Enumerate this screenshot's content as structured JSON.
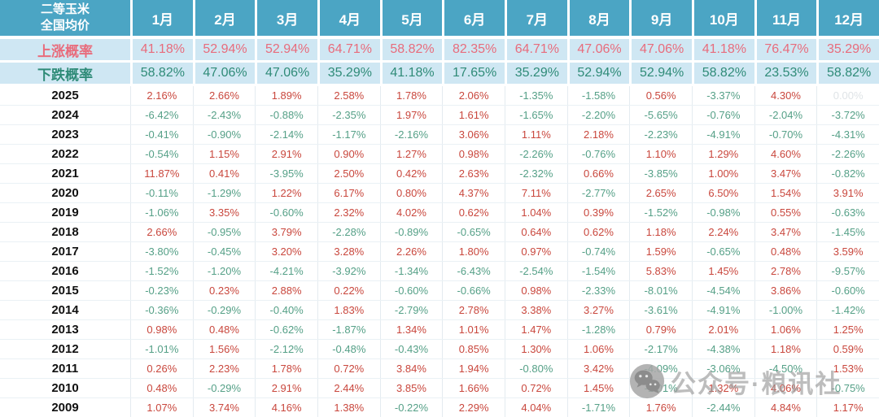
{
  "header": {
    "title_lines": [
      "二等玉米",
      "全国均价"
    ]
  },
  "watermark": {
    "text": "公众号·粮讯社",
    "icon": "wechat-icon"
  },
  "colors": {
    "header_bg": "#4ba5c4",
    "prob_bg": "#cfe7f3",
    "rise": "#e86c7c",
    "fall": "#2f8b78",
    "pos": "#c9473d",
    "neg": "#55a087",
    "zero": "#dfe4e7",
    "year_text": "#111111"
  },
  "chart_data": {
    "type": "table",
    "title": "二等玉米全国均价月度涨跌",
    "columns": [
      "1月",
      "2月",
      "3月",
      "4月",
      "5月",
      "6月",
      "7月",
      "8月",
      "9月",
      "10月",
      "11月",
      "12月"
    ],
    "rows": [
      {
        "kind": "probability-rise",
        "label": "上涨概率",
        "values": [
          "41.18%",
          "52.94%",
          "52.94%",
          "64.71%",
          "58.82%",
          "82.35%",
          "64.71%",
          "47.06%",
          "47.06%",
          "41.18%",
          "76.47%",
          "35.29%"
        ]
      },
      {
        "kind": "probability-fall",
        "label": "下跌概率",
        "values": [
          "58.82%",
          "47.06%",
          "47.06%",
          "35.29%",
          "41.18%",
          "17.65%",
          "35.29%",
          "52.94%",
          "52.94%",
          "58.82%",
          "23.53%",
          "58.82%"
        ]
      },
      {
        "kind": "year",
        "label": "2025",
        "values": [
          "2.16%",
          "2.66%",
          "1.89%",
          "2.58%",
          "1.78%",
          "2.06%",
          "-1.35%",
          "-1.58%",
          "0.56%",
          "-3.37%",
          "4.30%",
          "0.00%"
        ]
      },
      {
        "kind": "year",
        "label": "2024",
        "values": [
          "-6.42%",
          "-2.43%",
          "-0.88%",
          "-2.35%",
          "1.97%",
          "1.61%",
          "-1.65%",
          "-2.20%",
          "-5.65%",
          "-0.76%",
          "-2.04%",
          "-3.72%"
        ]
      },
      {
        "kind": "year",
        "label": "2023",
        "values": [
          "-0.41%",
          "-0.90%",
          "-2.14%",
          "-1.17%",
          "-2.16%",
          "3.06%",
          "1.11%",
          "2.18%",
          "-2.23%",
          "-4.91%",
          "-0.70%",
          "-4.31%"
        ]
      },
      {
        "kind": "year",
        "label": "2022",
        "values": [
          "-0.54%",
          "1.15%",
          "2.91%",
          "0.90%",
          "1.27%",
          "0.98%",
          "-2.26%",
          "-0.76%",
          "1.10%",
          "1.29%",
          "4.60%",
          "-2.26%"
        ]
      },
      {
        "kind": "year",
        "label": "2021",
        "values": [
          "11.87%",
          "0.41%",
          "-3.95%",
          "2.50%",
          "0.42%",
          "2.63%",
          "-2.32%",
          "0.66%",
          "-3.85%",
          "1.00%",
          "3.47%",
          "-0.82%"
        ]
      },
      {
        "kind": "year",
        "label": "2020",
        "values": [
          "-0.11%",
          "-1.29%",
          "1.22%",
          "6.17%",
          "0.80%",
          "4.37%",
          "7.11%",
          "-2.77%",
          "2.65%",
          "6.50%",
          "1.54%",
          "3.91%"
        ]
      },
      {
        "kind": "year",
        "label": "2019",
        "values": [
          "-1.06%",
          "3.35%",
          "-0.60%",
          "2.32%",
          "4.02%",
          "0.62%",
          "1.04%",
          "0.39%",
          "-1.52%",
          "-0.98%",
          "0.55%",
          "-0.63%"
        ]
      },
      {
        "kind": "year",
        "label": "2018",
        "values": [
          "2.66%",
          "-0.95%",
          "3.79%",
          "-2.28%",
          "-0.89%",
          "-0.65%",
          "0.64%",
          "0.62%",
          "1.18%",
          "2.24%",
          "3.47%",
          "-1.45%"
        ]
      },
      {
        "kind": "year",
        "label": "2017",
        "values": [
          "-3.80%",
          "-0.45%",
          "3.20%",
          "3.28%",
          "2.26%",
          "1.80%",
          "0.97%",
          "-0.74%",
          "1.59%",
          "-0.65%",
          "0.48%",
          "3.59%"
        ]
      },
      {
        "kind": "year",
        "label": "2016",
        "values": [
          "-1.52%",
          "-1.20%",
          "-4.21%",
          "-3.92%",
          "-1.34%",
          "-6.43%",
          "-2.54%",
          "-1.54%",
          "5.83%",
          "1.45%",
          "2.78%",
          "-9.57%"
        ]
      },
      {
        "kind": "year",
        "label": "2015",
        "values": [
          "-0.23%",
          "0.23%",
          "2.88%",
          "0.22%",
          "-0.60%",
          "-0.66%",
          "0.98%",
          "-2.33%",
          "-8.01%",
          "-4.54%",
          "3.86%",
          "-0.60%"
        ]
      },
      {
        "kind": "year",
        "label": "2014",
        "values": [
          "-0.36%",
          "-0.29%",
          "-0.40%",
          "1.83%",
          "-2.79%",
          "2.78%",
          "3.38%",
          "3.27%",
          "-3.61%",
          "-4.91%",
          "-1.00%",
          "-1.42%"
        ]
      },
      {
        "kind": "year",
        "label": "2013",
        "values": [
          "0.98%",
          "0.48%",
          "-0.62%",
          "-1.87%",
          "1.34%",
          "1.01%",
          "1.47%",
          "-1.28%",
          "0.79%",
          "2.01%",
          "1.06%",
          "1.25%"
        ]
      },
      {
        "kind": "year",
        "label": "2012",
        "values": [
          "-1.01%",
          "1.56%",
          "-2.12%",
          "-0.48%",
          "-0.43%",
          "0.85%",
          "1.30%",
          "1.06%",
          "-2.17%",
          "-4.38%",
          "1.18%",
          "0.59%"
        ]
      },
      {
        "kind": "year",
        "label": "2011",
        "values": [
          "0.26%",
          "2.23%",
          "1.78%",
          "0.72%",
          "3.84%",
          "1.94%",
          "-0.80%",
          "3.42%",
          "-4.09%",
          "-3.06%",
          "-4.50%",
          "1.53%"
        ]
      },
      {
        "kind": "year",
        "label": "2010",
        "values": [
          "0.48%",
          "-0.29%",
          "2.91%",
          "2.44%",
          "3.85%",
          "1.66%",
          "0.72%",
          "1.45%",
          "-1.01%",
          "1.32%",
          "4.06%",
          "-0.75%"
        ]
      },
      {
        "kind": "year",
        "label": "2009",
        "values": [
          "1.07%",
          "3.74%",
          "4.16%",
          "1.38%",
          "-0.22%",
          "2.29%",
          "4.04%",
          "-1.71%",
          "1.76%",
          "-2.44%",
          "4.84%",
          "1.17%"
        ]
      }
    ]
  }
}
